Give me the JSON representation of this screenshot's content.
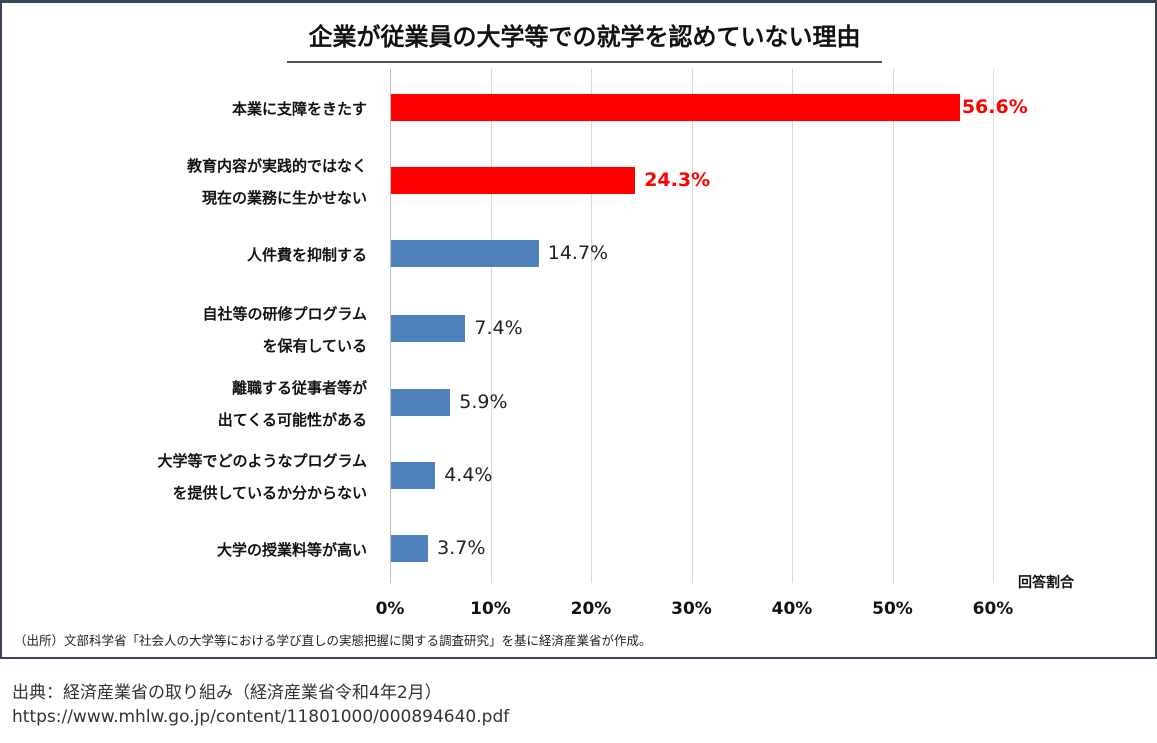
{
  "chart_data": {
    "type": "bar",
    "orientation": "horizontal",
    "title": "企業が従業員の大学等での就学を認めていない理由",
    "xlabel": "回答割合",
    "ylabel": "",
    "xlim": [
      0,
      60
    ],
    "grid": true,
    "legend": null,
    "categories": [
      "本業に支障をきたす",
      "教育内容が実践的ではなく現在の業務に生かせない",
      "人件費を抑制する",
      "自社等の研修プログラムを保有している",
      "離職する従事者等が出てくる可能性がある",
      "大学等でどのようなプログラムを提供しているか分からない",
      "大学の授業料等が高い"
    ],
    "values": [
      56.6,
      24.3,
      14.7,
      7.4,
      5.9,
      4.4,
      3.7
    ],
    "value_labels": [
      "56.6%",
      "24.3%",
      "14.7%",
      "7.4%",
      "5.9%",
      "4.4%",
      "3.7%"
    ],
    "highlighted": [
      true,
      true,
      false,
      false,
      false,
      false,
      false
    ],
    "x_ticks": [
      "0%",
      "10%",
      "20%",
      "30%",
      "40%",
      "50%",
      "60%"
    ],
    "colors": {
      "highlight": "#ff0000",
      "normal": "#4f81bd"
    }
  },
  "chart": {
    "title": "企業が従業員の大学等での就学を認めていない理由",
    "axis_title": "回答割合",
    "ticks": [
      "0%",
      "10%",
      "20%",
      "30%",
      "40%",
      "50%",
      "60%"
    ],
    "rows": [
      {
        "lines": [
          "本業に支障をきたす"
        ],
        "value": 56.6,
        "label": "56.6%",
        "highlight": true
      },
      {
        "lines": [
          "教育内容が実践的ではなく",
          "現在の業務に生かせない"
        ],
        "value": 24.3,
        "label": "24.3%",
        "highlight": true
      },
      {
        "lines": [
          "人件費を抑制する"
        ],
        "value": 14.7,
        "label": "14.7%",
        "highlight": false
      },
      {
        "lines": [
          "自社等の研修プログラム",
          "を保有している"
        ],
        "value": 7.4,
        "label": "7.4%",
        "highlight": false
      },
      {
        "lines": [
          "離職する従事者等が",
          "出てくる可能性がある"
        ],
        "value": 5.9,
        "label": "5.9%",
        "highlight": false
      },
      {
        "lines": [
          "大学等でどのようなプログラム",
          "を提供しているか分からない"
        ],
        "value": 4.4,
        "label": "4.4%",
        "highlight": false
      },
      {
        "lines": [
          "大学の授業料等が高い"
        ],
        "value": 3.7,
        "label": "3.7%",
        "highlight": false
      }
    ],
    "source_note": "（出所）文部科学省「社会人の大学等における学び直しの実態把握に関する調査研究」を基に経済産業省が作成。"
  },
  "caption": {
    "line1": "出典：経済産業省の取り組み（経済産業省令和4年2月）",
    "line2": "https://www.mhlw.go.jp/content/11801000/000894640.pdf"
  }
}
